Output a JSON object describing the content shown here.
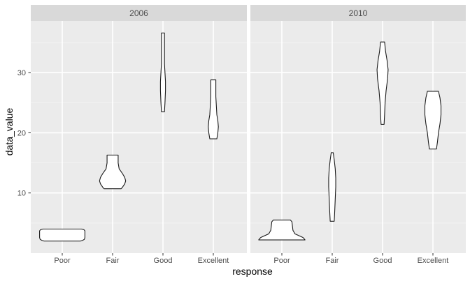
{
  "chart_data": {
    "type": "violin",
    "facet_by": "year",
    "facets": [
      "2006",
      "2010"
    ],
    "categories": [
      "Poor",
      "Fair",
      "Good",
      "Excellent"
    ],
    "xlabel": "response",
    "ylabel": "data_value",
    "ylim": [
      0,
      38.6
    ],
    "yticks": [
      10,
      20,
      30
    ],
    "grid": true,
    "panels": [
      {
        "facet": "2006",
        "violins": [
          {
            "category": "Poor",
            "min": 2.0,
            "max": 4.0,
            "profile": [
              [
                2.0,
                0.36
              ],
              [
                2.1,
                0.4
              ],
              [
                2.3,
                0.44
              ],
              [
                2.6,
                0.45
              ],
              [
                3.0,
                0.45
              ],
              [
                3.4,
                0.45
              ],
              [
                3.7,
                0.45
              ],
              [
                3.9,
                0.43
              ],
              [
                4.0,
                0.38
              ]
            ]
          },
          {
            "category": "Fair",
            "min": 10.7,
            "max": 16.3,
            "profile": [
              [
                10.7,
                0.17
              ],
              [
                11.0,
                0.2
              ],
              [
                11.5,
                0.24
              ],
              [
                12.0,
                0.26
              ],
              [
                12.6,
                0.24
              ],
              [
                13.3,
                0.19
              ],
              [
                14.0,
                0.13
              ],
              [
                15.0,
                0.11
              ],
              [
                16.0,
                0.11
              ],
              [
                16.3,
                0.11
              ]
            ]
          },
          {
            "category": "Good",
            "min": 23.5,
            "max": 36.6,
            "profile": [
              [
                23.5,
                0.03
              ],
              [
                25.0,
                0.04
              ],
              [
                27.0,
                0.05
              ],
              [
                28.5,
                0.05
              ],
              [
                30.0,
                0.04
              ],
              [
                31.5,
                0.03
              ],
              [
                33.0,
                0.03
              ],
              [
                35.0,
                0.03
              ],
              [
                36.6,
                0.03
              ]
            ]
          },
          {
            "category": "Excellent",
            "min": 19.0,
            "max": 28.8,
            "profile": [
              [
                19.0,
                0.07
              ],
              [
                20.0,
                0.09
              ],
              [
                21.0,
                0.1
              ],
              [
                22.0,
                0.09
              ],
              [
                23.0,
                0.07
              ],
              [
                24.5,
                0.06
              ],
              [
                26.0,
                0.05
              ],
              [
                27.5,
                0.05
              ],
              [
                28.8,
                0.05
              ]
            ]
          }
        ]
      },
      {
        "facet": "2010",
        "violins": [
          {
            "category": "Poor",
            "min": 2.2,
            "max": 5.5,
            "profile": [
              [
                2.2,
                0.46
              ],
              [
                2.6,
                0.42
              ],
              [
                3.2,
                0.26
              ],
              [
                3.8,
                0.22
              ],
              [
                4.5,
                0.21
              ],
              [
                5.2,
                0.2
              ],
              [
                5.5,
                0.17
              ]
            ]
          },
          {
            "category": "Fair",
            "min": 5.3,
            "max": 16.7,
            "profile": [
              [
                5.3,
                0.04
              ],
              [
                7.0,
                0.05
              ],
              [
                9.0,
                0.06
              ],
              [
                11.0,
                0.07
              ],
              [
                12.5,
                0.07
              ],
              [
                14.0,
                0.06
              ],
              [
                15.5,
                0.04
              ],
              [
                16.7,
                0.02
              ]
            ]
          },
          {
            "category": "Good",
            "min": 21.4,
            "max": 35.1,
            "profile": [
              [
                21.4,
                0.03
              ],
              [
                23.0,
                0.04
              ],
              [
                25.0,
                0.05
              ],
              [
                27.0,
                0.07
              ],
              [
                29.0,
                0.1
              ],
              [
                30.5,
                0.11
              ],
              [
                32.0,
                0.09
              ],
              [
                33.5,
                0.06
              ],
              [
                35.1,
                0.04
              ]
            ]
          },
          {
            "category": "Excellent",
            "min": 17.3,
            "max": 26.9,
            "profile": [
              [
                17.3,
                0.07
              ],
              [
                18.5,
                0.09
              ],
              [
                20.0,
                0.11
              ],
              [
                21.5,
                0.14
              ],
              [
                23.0,
                0.16
              ],
              [
                24.5,
                0.16
              ],
              [
                25.8,
                0.14
              ],
              [
                26.9,
                0.11
              ]
            ]
          }
        ]
      }
    ]
  }
}
